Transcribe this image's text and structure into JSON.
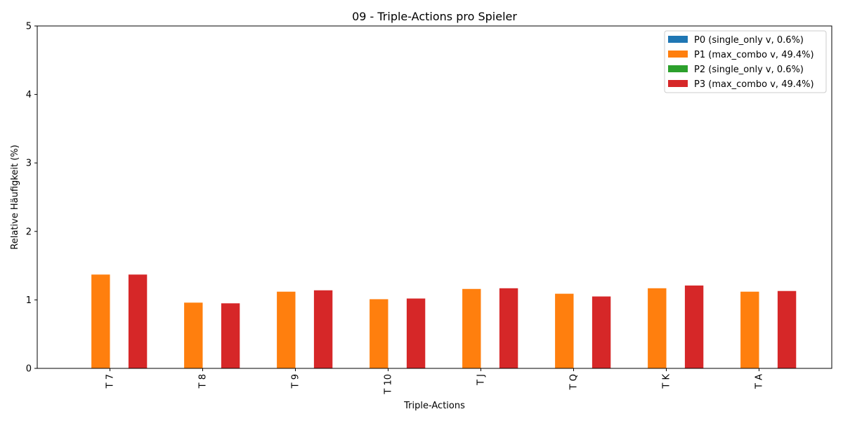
{
  "chart_data": {
    "type": "bar",
    "title": "09 - Triple-Actions pro Spieler",
    "xlabel": "Triple-Actions",
    "ylabel": "Relative Häufigkeit (%)",
    "ylim": [
      0,
      5
    ],
    "yticks": [
      "0",
      "1",
      "2",
      "3",
      "4",
      "5"
    ],
    "grid": false,
    "legend_position": "top-right",
    "categories": [
      "T 7",
      "T 8",
      "T 9",
      "T 10",
      "T J",
      "T Q",
      "T K",
      "T A"
    ],
    "series": [
      {
        "name": "P0 (single_only v, 0.6%)",
        "color": "#1f77b4",
        "values": [
          0,
          0,
          0,
          0,
          0,
          0,
          0,
          0
        ]
      },
      {
        "name": "P1 (max_combo v, 49.4%)",
        "color": "#ff7f0e",
        "values": [
          1.37,
          0.96,
          1.12,
          1.01,
          1.16,
          1.09,
          1.17,
          1.12
        ]
      },
      {
        "name": "P2 (single_only v, 0.6%)",
        "color": "#2ca02c",
        "values": [
          0,
          0,
          0,
          0,
          0,
          0,
          0,
          0
        ]
      },
      {
        "name": "P3 (max_combo v, 49.4%)",
        "color": "#d62728",
        "values": [
          1.37,
          0.95,
          1.14,
          1.02,
          1.17,
          1.05,
          1.21,
          1.13
        ]
      }
    ]
  }
}
